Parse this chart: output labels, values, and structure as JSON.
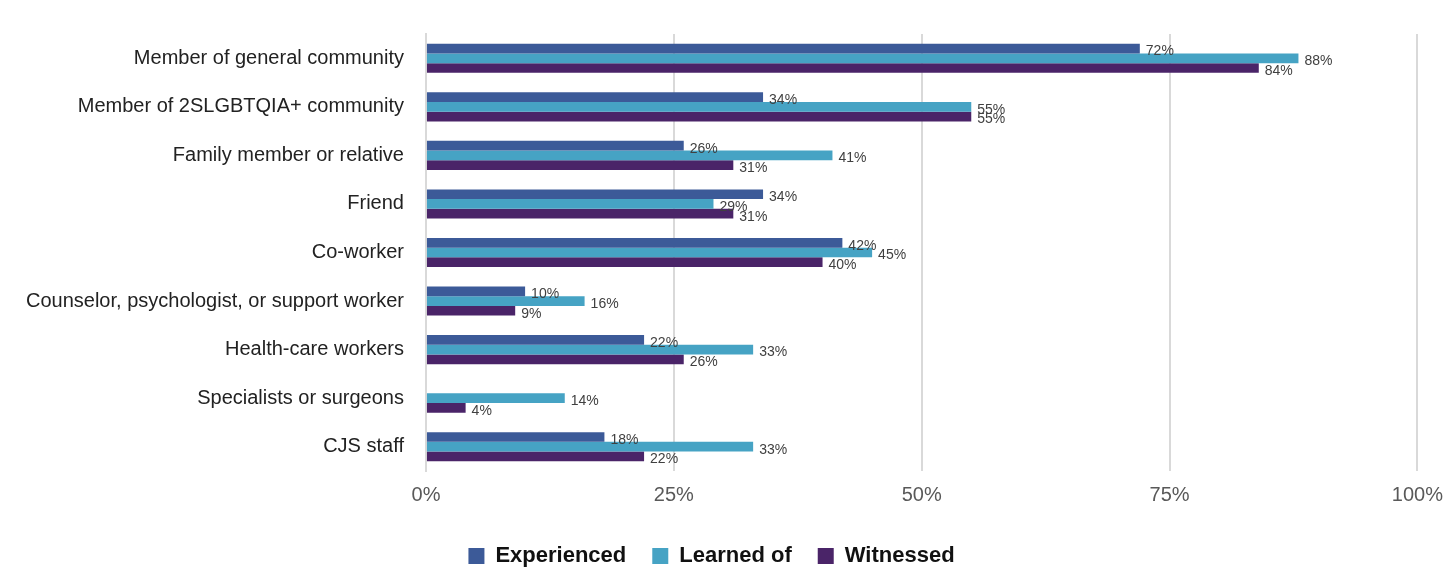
{
  "chart_data": {
    "type": "bar",
    "orientation": "horizontal",
    "categories": [
      "Member of general community",
      "Member of 2SLGBTQIA+ community",
      "Family member or relative",
      "Friend",
      "Co-worker",
      "Counselor, psychologist, or support worker",
      "Health-care workers",
      "Specialists or surgeons",
      "CJS staff"
    ],
    "series": [
      {
        "name": "Experienced",
        "color": "#3c5a98",
        "values": [
          72,
          34,
          26,
          34,
          42,
          10,
          22,
          null,
          18
        ],
        "value_labels": [
          "72%",
          "34%",
          "26%",
          "34%",
          "42%",
          "10%",
          "22%",
          null,
          "18%"
        ]
      },
      {
        "name": "Learned of",
        "color": "#46a3c4",
        "values": [
          88,
          55,
          41,
          29,
          45,
          16,
          33,
          14,
          33
        ],
        "value_labels": [
          "88%",
          "55%",
          "41%",
          "29%",
          "45%",
          "16%",
          "33%",
          "14%",
          "33%"
        ]
      },
      {
        "name": "Witnessed",
        "color": "#4a2468",
        "values": [
          84,
          55,
          31,
          31,
          40,
          9,
          26,
          4,
          22
        ],
        "value_labels": [
          "84%",
          "55%",
          "31%",
          "31%",
          "40%",
          "9%",
          "26%",
          "4%",
          "22%"
        ]
      }
    ],
    "xlim": [
      0,
      100
    ],
    "xticks": [
      {
        "value": 0,
        "label": "0%"
      },
      {
        "value": 25,
        "label": "25%"
      },
      {
        "value": 50,
        "label": "50%"
      },
      {
        "value": 75,
        "label": "75%"
      },
      {
        "value": 100,
        "label": "100%"
      }
    ],
    "grid": "x",
    "legend": "bottom"
  }
}
